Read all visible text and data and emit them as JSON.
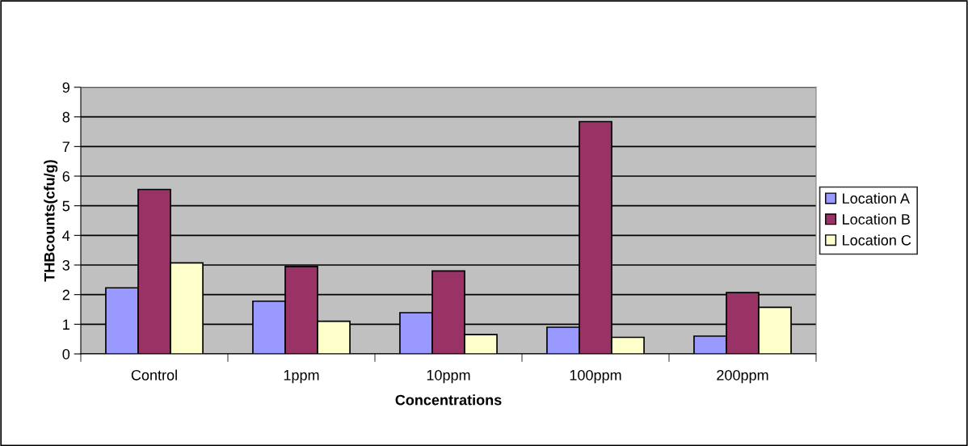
{
  "chart_data": {
    "type": "bar",
    "xlabel": "Concentrations",
    "ylabel": "THBcounts(cfu/g)",
    "categories": [
      "Control",
      "1ppm",
      "10ppm",
      "100ppm",
      "200ppm"
    ],
    "series": [
      {
        "name": "Location A",
        "color": "#9999ff",
        "values": [
          2.23,
          1.78,
          1.39,
          0.9,
          0.6
        ]
      },
      {
        "name": "Location B",
        "color": "#993366",
        "values": [
          5.55,
          2.95,
          2.8,
          7.84,
          2.07
        ]
      },
      {
        "name": "Location C",
        "color": "#ffffcc",
        "values": [
          3.07,
          1.1,
          0.65,
          0.56,
          1.57
        ]
      }
    ],
    "ylim": [
      0,
      9
    ],
    "yticks": [
      0,
      1,
      2,
      3,
      4,
      5,
      6,
      7,
      8,
      9
    ],
    "grid": "y",
    "legend": "right"
  }
}
